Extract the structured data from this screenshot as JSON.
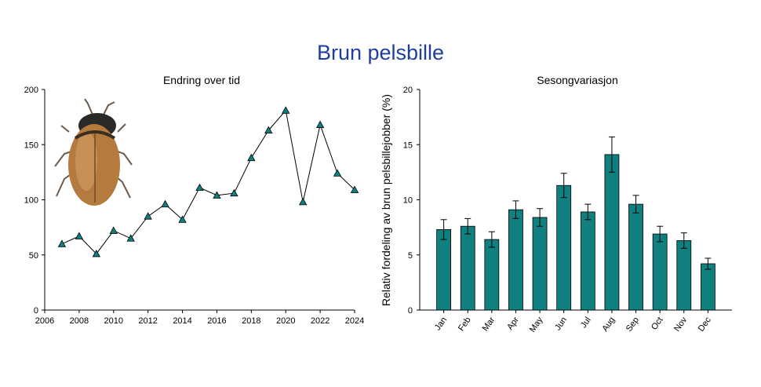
{
  "title": "Brun pelsbille",
  "colors": {
    "title": "#1f3f9a",
    "marker": "#0f8080",
    "bar": "#0f7f7f"
  },
  "chart_data": [
    {
      "type": "line",
      "title": "Endring over tid",
      "xlabel": "",
      "ylabel": "",
      "x": [
        2007,
        2008,
        2009,
        2010,
        2011,
        2012,
        2013,
        2014,
        2015,
        2016,
        2017,
        2018,
        2019,
        2020,
        2021,
        2022,
        2023,
        2024
      ],
      "y": [
        60,
        67,
        51,
        72,
        65,
        85,
        96,
        82,
        111,
        104,
        106,
        138,
        163,
        181,
        98,
        168,
        124,
        109
      ],
      "xlim": [
        2006,
        2024
      ],
      "ylim": [
        0,
        200
      ],
      "xticks": [
        "2006",
        "2008",
        "2010",
        "2012",
        "2014",
        "2016",
        "2018",
        "2020",
        "2022",
        "2024"
      ],
      "yticks": [
        "0",
        "50",
        "100",
        "150",
        "200"
      ],
      "marker": "triangle",
      "grid": false,
      "image": "beetle-illustration"
    },
    {
      "type": "bar",
      "title": "Sesongvariasjon",
      "xlabel": "",
      "ylabel": "Relativ fordeling av brun pelsbillejobber (%)",
      "categories": [
        "Jan",
        "Feb",
        "Mar",
        "Apr",
        "May",
        "Jun",
        "Jul",
        "Aug",
        "Sep",
        "Oct",
        "Nov",
        "Dec"
      ],
      "values": [
        7.3,
        7.6,
        6.4,
        9.1,
        8.4,
        11.3,
        8.9,
        14.1,
        9.6,
        6.9,
        6.3,
        4.2
      ],
      "errors": [
        0.9,
        0.7,
        0.7,
        0.8,
        0.8,
        1.1,
        0.7,
        1.6,
        0.8,
        0.7,
        0.7,
        0.5
      ],
      "ylim": [
        0,
        20
      ],
      "yticks": [
        "0",
        "5",
        "10",
        "15",
        "20"
      ],
      "grid": false
    }
  ]
}
